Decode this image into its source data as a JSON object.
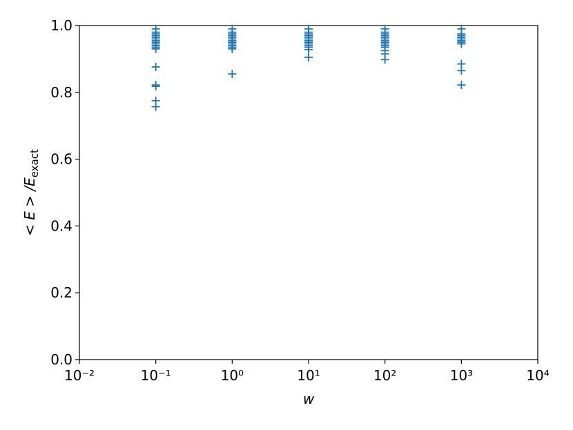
{
  "chart_data": {
    "type": "scatter",
    "xlabel": "w",
    "ylabel": {
      "main": "< E > /E",
      "subscript": "exact"
    },
    "xscale": "log",
    "xlim": [
      0.01,
      10000
    ],
    "xticks": [
      {
        "value": 0.01,
        "label": "10⁻²"
      },
      {
        "value": 0.1,
        "label": "10⁻¹"
      },
      {
        "value": 1,
        "label": "10⁰"
      },
      {
        "value": 10,
        "label": "10¹"
      },
      {
        "value": 100,
        "label": "10²"
      },
      {
        "value": 1000,
        "label": "10³"
      },
      {
        "value": 10000,
        "label": "10⁴"
      }
    ],
    "ylim": [
      0,
      1
    ],
    "yticks": [
      {
        "value": 0,
        "label": "0.0"
      },
      0.2,
      0.4,
      0.6,
      0.8,
      {
        "value": 1,
        "label": "1.0"
      }
    ],
    "marker": "+",
    "series": [
      {
        "color": "#1f77b4",
        "x": [
          0.1,
          0.1,
          0.1,
          0.1,
          0.1,
          0.1,
          0.1,
          0.1,
          0.1,
          0.1,
          0.1,
          0.1,
          0.1,
          0.1,
          0.1,
          0.1,
          0.1,
          1,
          1,
          1,
          1,
          1,
          1,
          1,
          1,
          1,
          1,
          1,
          1,
          1,
          10,
          10,
          10,
          10,
          10,
          10,
          10,
          10,
          10,
          10,
          10,
          10,
          10,
          100,
          100,
          100,
          100,
          100,
          100,
          100,
          100,
          100,
          100,
          100,
          100,
          100,
          100,
          1000,
          1000,
          1000,
          1000,
          1000,
          1000,
          1000,
          1000,
          1000,
          1000,
          1000
        ],
        "y": [
          0.99,
          0.98,
          0.975,
          0.97,
          0.965,
          0.96,
          0.955,
          0.95,
          0.945,
          0.94,
          0.935,
          0.93,
          0.876,
          0.822,
          0.818,
          0.775,
          0.757,
          0.99,
          0.98,
          0.975,
          0.97,
          0.965,
          0.96,
          0.955,
          0.95,
          0.945,
          0.94,
          0.935,
          0.93,
          0.855,
          0.99,
          0.98,
          0.975,
          0.97,
          0.965,
          0.96,
          0.955,
          0.95,
          0.945,
          0.94,
          0.935,
          0.928,
          0.905,
          0.99,
          0.98,
          0.975,
          0.97,
          0.965,
          0.96,
          0.955,
          0.95,
          0.945,
          0.94,
          0.935,
          0.925,
          0.915,
          0.898,
          0.99,
          0.975,
          0.97,
          0.965,
          0.96,
          0.955,
          0.95,
          0.945,
          0.885,
          0.865,
          0.822
        ]
      }
    ]
  }
}
